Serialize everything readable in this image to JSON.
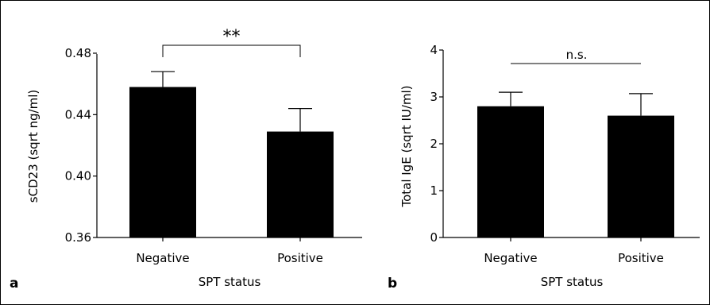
{
  "chart_data": [
    {
      "type": "bar",
      "panel_label": "a",
      "categories": [
        "Negative",
        "Positive"
      ],
      "values": [
        0.458,
        0.429
      ],
      "errors": [
        0.01,
        0.015
      ],
      "ylabel": "sCD23 (sqrt ng/ml)",
      "xlabel": "SPT status",
      "ylim": [
        0.36,
        0.48
      ],
      "yticks": [
        "0.36",
        "0.40",
        "0.44",
        "0.48"
      ],
      "ytick_values": [
        0.36,
        0.4,
        0.44,
        0.48
      ],
      "significance": "**",
      "bar_color": "#000000",
      "grid": false
    },
    {
      "type": "bar",
      "panel_label": "b",
      "categories": [
        "Negative",
        "Positive"
      ],
      "values": [
        2.8,
        2.6
      ],
      "errors": [
        0.3,
        0.47
      ],
      "ylabel": "Total IgE (sqrt IU/ml)",
      "xlabel": "SPT status",
      "ylim": [
        0,
        4
      ],
      "yticks": [
        "0",
        "1",
        "2",
        "3",
        "4"
      ],
      "ytick_values": [
        0,
        1,
        2,
        3,
        4
      ],
      "significance": "n.s.",
      "bar_color": "#000000",
      "grid": false
    }
  ]
}
